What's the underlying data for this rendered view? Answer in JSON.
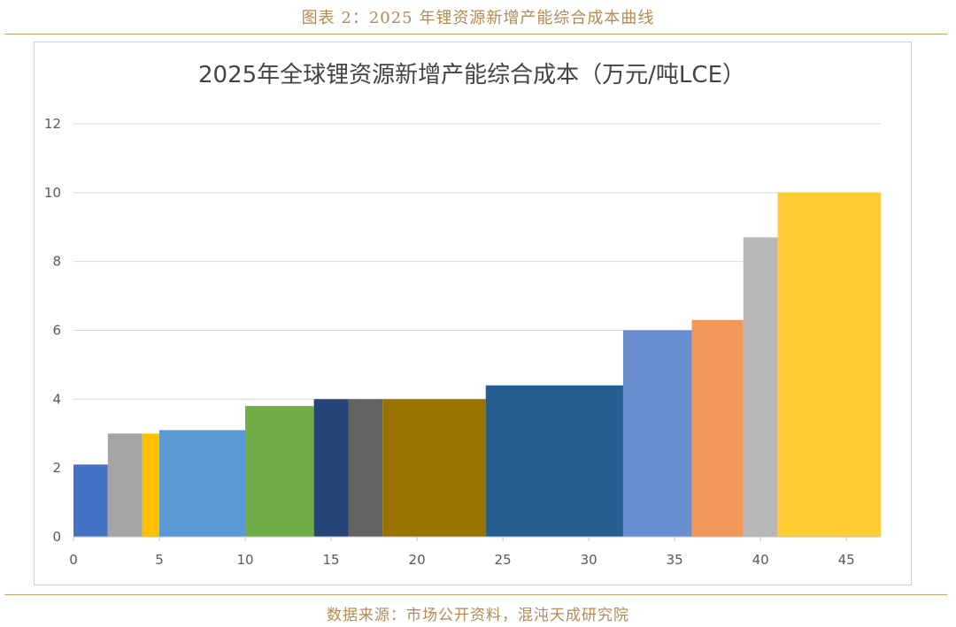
{
  "figure": {
    "caption": "图表 2：2025 年锂资源新增产能综合成本曲线",
    "source": "数据来源：市场公开资料，混沌天成研究院"
  },
  "chart_data": {
    "type": "bar",
    "title": "2025年全球锂资源新增产能综合成本（万元/吨LCE）",
    "xlabel": "",
    "ylabel": "",
    "xlim": [
      0,
      47
    ],
    "ylim": [
      0,
      12
    ],
    "x_ticks": [
      0,
      5,
      10,
      15,
      20,
      25,
      30,
      35,
      40,
      45
    ],
    "y_ticks": [
      0,
      2,
      4,
      6,
      8,
      10,
      12
    ],
    "grid": "horizontal",
    "legend": "none",
    "bars": [
      {
        "x0": 0,
        "x1": 2,
        "value": 2.1,
        "color": "#4472c4"
      },
      {
        "x0": 2,
        "x1": 4,
        "value": 3.0,
        "color": "#a5a5a5"
      },
      {
        "x0": 4,
        "x1": 5,
        "value": 3.0,
        "color": "#ffc000"
      },
      {
        "x0": 5,
        "x1": 10,
        "value": 3.1,
        "color": "#5b9bd5"
      },
      {
        "x0": 10,
        "x1": 14,
        "value": 3.8,
        "color": "#70ad47"
      },
      {
        "x0": 14,
        "x1": 16,
        "value": 4.0,
        "color": "#264478"
      },
      {
        "x0": 16,
        "x1": 18,
        "value": 4.0,
        "color": "#636363"
      },
      {
        "x0": 18,
        "x1": 24,
        "value": 4.0,
        "color": "#997300"
      },
      {
        "x0": 24,
        "x1": 32,
        "value": 4.4,
        "color": "#255e91"
      },
      {
        "x0": 32,
        "x1": 36,
        "value": 6.0,
        "color": "#698ed0"
      },
      {
        "x0": 36,
        "x1": 39,
        "value": 6.3,
        "color": "#f1975a"
      },
      {
        "x0": 39,
        "x1": 41,
        "value": 8.7,
        "color": "#b7b7b7"
      },
      {
        "x0": 41,
        "x1": 47,
        "value": 10.0,
        "color": "#ffcd33"
      }
    ]
  }
}
